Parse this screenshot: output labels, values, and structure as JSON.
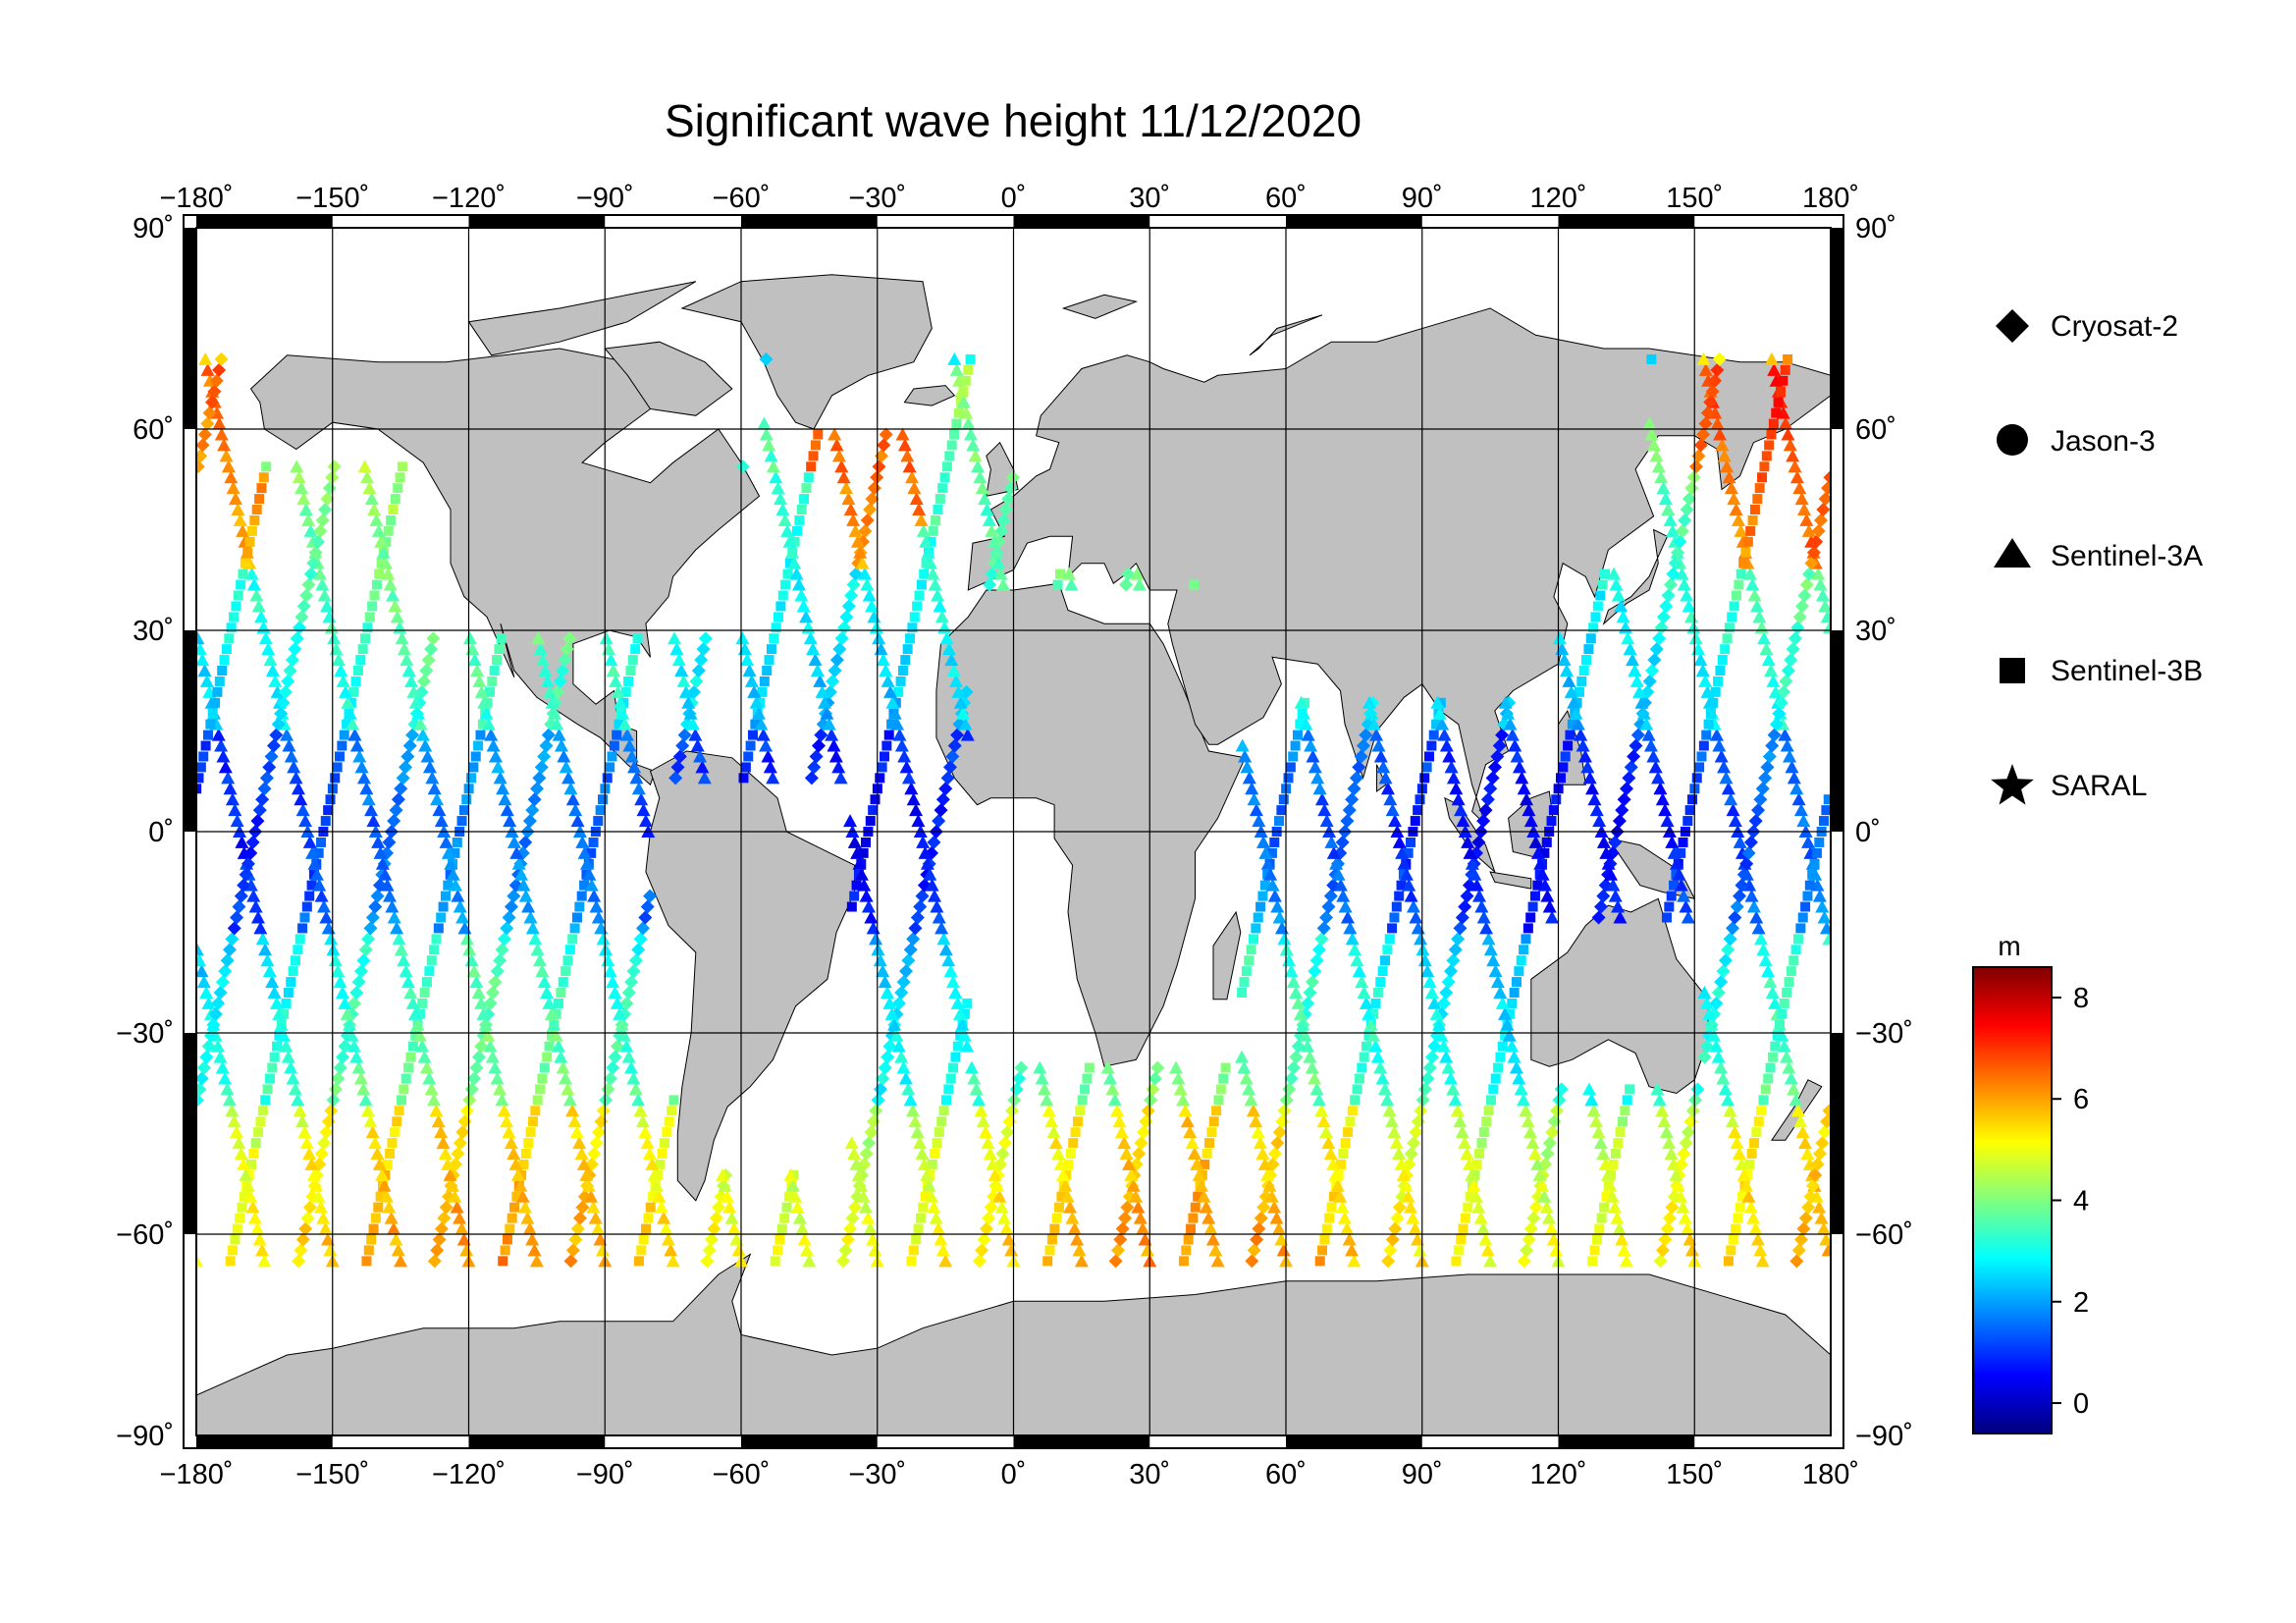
{
  "title": "Significant wave height 11/12/2020",
  "map": {
    "projection": "equirectangular",
    "lon_range": [
      -180,
      180
    ],
    "lat_range": [
      -90,
      90
    ],
    "lon_ticks": [
      -180,
      -150,
      -120,
      -90,
      -60,
      -30,
      0,
      30,
      60,
      90,
      120,
      150,
      180
    ],
    "lat_ticks": [
      90,
      60,
      30,
      0,
      -30,
      -60,
      -90
    ],
    "lon_tick_labels": [
      "−180˚",
      "−150˚",
      "−120˚",
      "−90˚",
      "−60˚",
      "−30˚",
      "0˚",
      "30˚",
      "60˚",
      "90˚",
      "120˚",
      "150˚",
      "180˚"
    ],
    "lat_tick_labels": [
      "90˚",
      "60˚",
      "30˚",
      "0˚",
      "−30˚",
      "−60˚",
      "−90˚"
    ],
    "grid": true,
    "ocean_color": "#ffffff",
    "land_color": "#c0c0c0"
  },
  "legend": {
    "placement": "right",
    "items": [
      {
        "label": "Cryosat-2",
        "marker": "diamond"
      },
      {
        "label": "Jason-3",
        "marker": "circle"
      },
      {
        "label": "Sentinel-3A",
        "marker": "triangle"
      },
      {
        "label": "Sentinel-3B",
        "marker": "square"
      },
      {
        "label": "SARAL",
        "marker": "star"
      }
    ]
  },
  "colorbar": {
    "unit": "m",
    "min": -0.6,
    "max": 8.6,
    "ticks": [
      0,
      2,
      4,
      6,
      8
    ],
    "tick_labels": [
      "0",
      "2",
      "4",
      "6",
      "8"
    ],
    "colormap": "jet"
  }
}
